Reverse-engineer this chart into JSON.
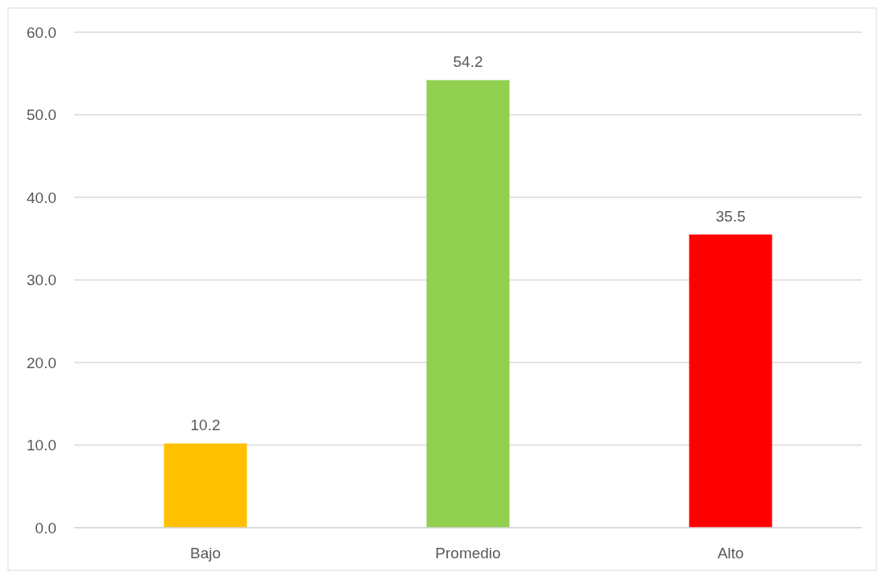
{
  "chart_data": {
    "type": "bar",
    "categories": [
      "Bajo",
      "Promedio",
      "Alto"
    ],
    "values": [
      10.2,
      54.2,
      35.5
    ],
    "colors": [
      "#ffc000",
      "#92d050",
      "#ff0000"
    ],
    "ylim": [
      0,
      60
    ],
    "yticks": [
      {
        "value": 0,
        "label": "0.0"
      },
      {
        "value": 10,
        "label": "10.0"
      },
      {
        "value": 20,
        "label": "20.0"
      },
      {
        "value": 30,
        "label": "30.0"
      },
      {
        "value": 40,
        "label": "40.0"
      },
      {
        "value": 50,
        "label": "50.0"
      },
      {
        "value": 60,
        "label": "60.0"
      }
    ],
    "grid": "y",
    "data_labels": true
  }
}
